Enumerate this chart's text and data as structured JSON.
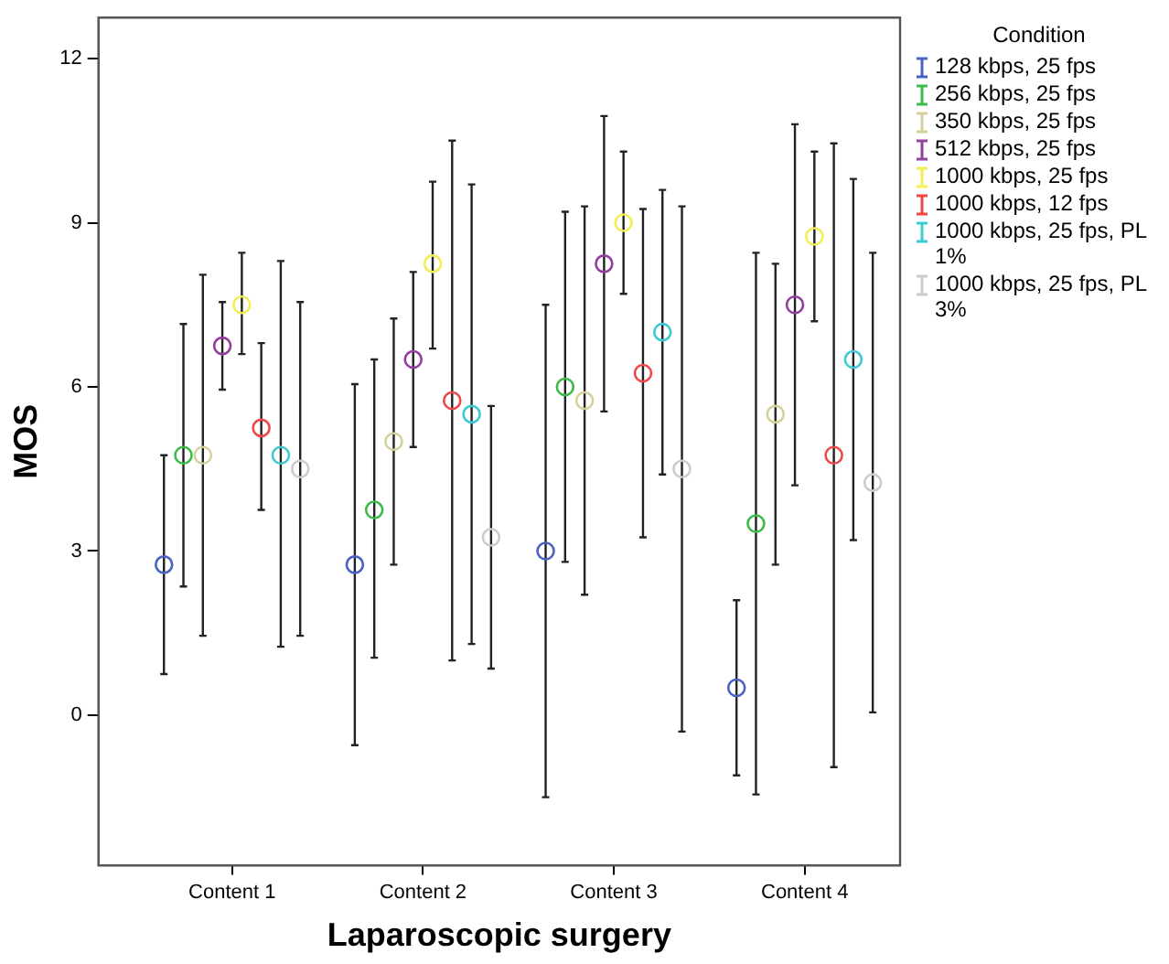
{
  "chart_data": {
    "type": "scatter",
    "xlabel": "Laparoscopic surgery",
    "ylabel": "MOS",
    "legend_title": "Condition",
    "legend": "right",
    "grid": false,
    "marker": "circle",
    "categories": [
      "Content 1",
      "Content 2",
      "Content 3",
      "Content 4"
    ],
    "ylim": [
      -2.75,
      12.75
    ],
    "yticks": [
      0,
      3,
      6,
      9,
      12
    ],
    "series": [
      {
        "name": "128 kbps, 25 fps",
        "color": "#4a62c0",
        "values": [
          2.75,
          2.75,
          3.0,
          0.5
        ],
        "errors": [
          [
            0.75,
            4.75
          ],
          [
            -0.55,
            6.05
          ],
          [
            -1.5,
            7.5
          ],
          [
            -1.1,
            2.1
          ]
        ]
      },
      {
        "name": "256 kbps, 25 fps",
        "color": "#3cba4a",
        "values": [
          4.75,
          3.75,
          6.0,
          3.5
        ],
        "errors": [
          [
            2.35,
            7.15
          ],
          [
            1.05,
            6.5
          ],
          [
            2.8,
            9.2
          ],
          [
            -1.45,
            8.45
          ]
        ]
      },
      {
        "name": "350 kbps, 25 fps",
        "color": "#d6d09a",
        "values": [
          4.75,
          5.0,
          5.75,
          5.5
        ],
        "errors": [
          [
            1.45,
            8.05
          ],
          [
            2.75,
            7.25
          ],
          [
            2.2,
            9.3
          ],
          [
            2.75,
            8.25
          ]
        ]
      },
      {
        "name": "512 kbps, 25 fps",
        "color": "#943e9e",
        "values": [
          6.75,
          6.5,
          8.25,
          7.5
        ],
        "errors": [
          [
            5.95,
            7.55
          ],
          [
            4.9,
            8.1
          ],
          [
            5.55,
            10.95
          ],
          [
            4.2,
            10.8
          ]
        ]
      },
      {
        "name": "1000 kbps, 25 fps",
        "color": "#f2ee55",
        "values": [
          7.5,
          8.25,
          9.0,
          8.75
        ],
        "errors": [
          [
            6.6,
            8.45
          ],
          [
            6.7,
            9.75
          ],
          [
            7.7,
            10.3
          ],
          [
            7.2,
            10.3
          ]
        ]
      },
      {
        "name": "1000 kbps, 12 fps",
        "color": "#f04848",
        "values": [
          5.25,
          5.75,
          6.25,
          4.75
        ],
        "errors": [
          [
            3.75,
            6.8
          ],
          [
            1.0,
            10.5
          ],
          [
            3.25,
            9.25
          ],
          [
            -0.95,
            10.45
          ]
        ]
      },
      {
        "name": "1000 kbps, 25 fps, PL 1%",
        "color": "#3ecad2",
        "values": [
          4.75,
          5.5,
          7.0,
          6.5
        ],
        "errors": [
          [
            1.25,
            8.3
          ],
          [
            1.3,
            9.7
          ],
          [
            4.4,
            9.6
          ],
          [
            3.2,
            9.8
          ]
        ]
      },
      {
        "name": "1000 kbps, 25 fps, PL 3%",
        "color": "#cccccc",
        "values": [
          4.5,
          3.25,
          4.5,
          4.25
        ],
        "errors": [
          [
            1.45,
            7.55
          ],
          [
            0.85,
            5.65
          ],
          [
            -0.3,
            9.3
          ],
          [
            0.05,
            8.45
          ]
        ]
      }
    ]
  }
}
